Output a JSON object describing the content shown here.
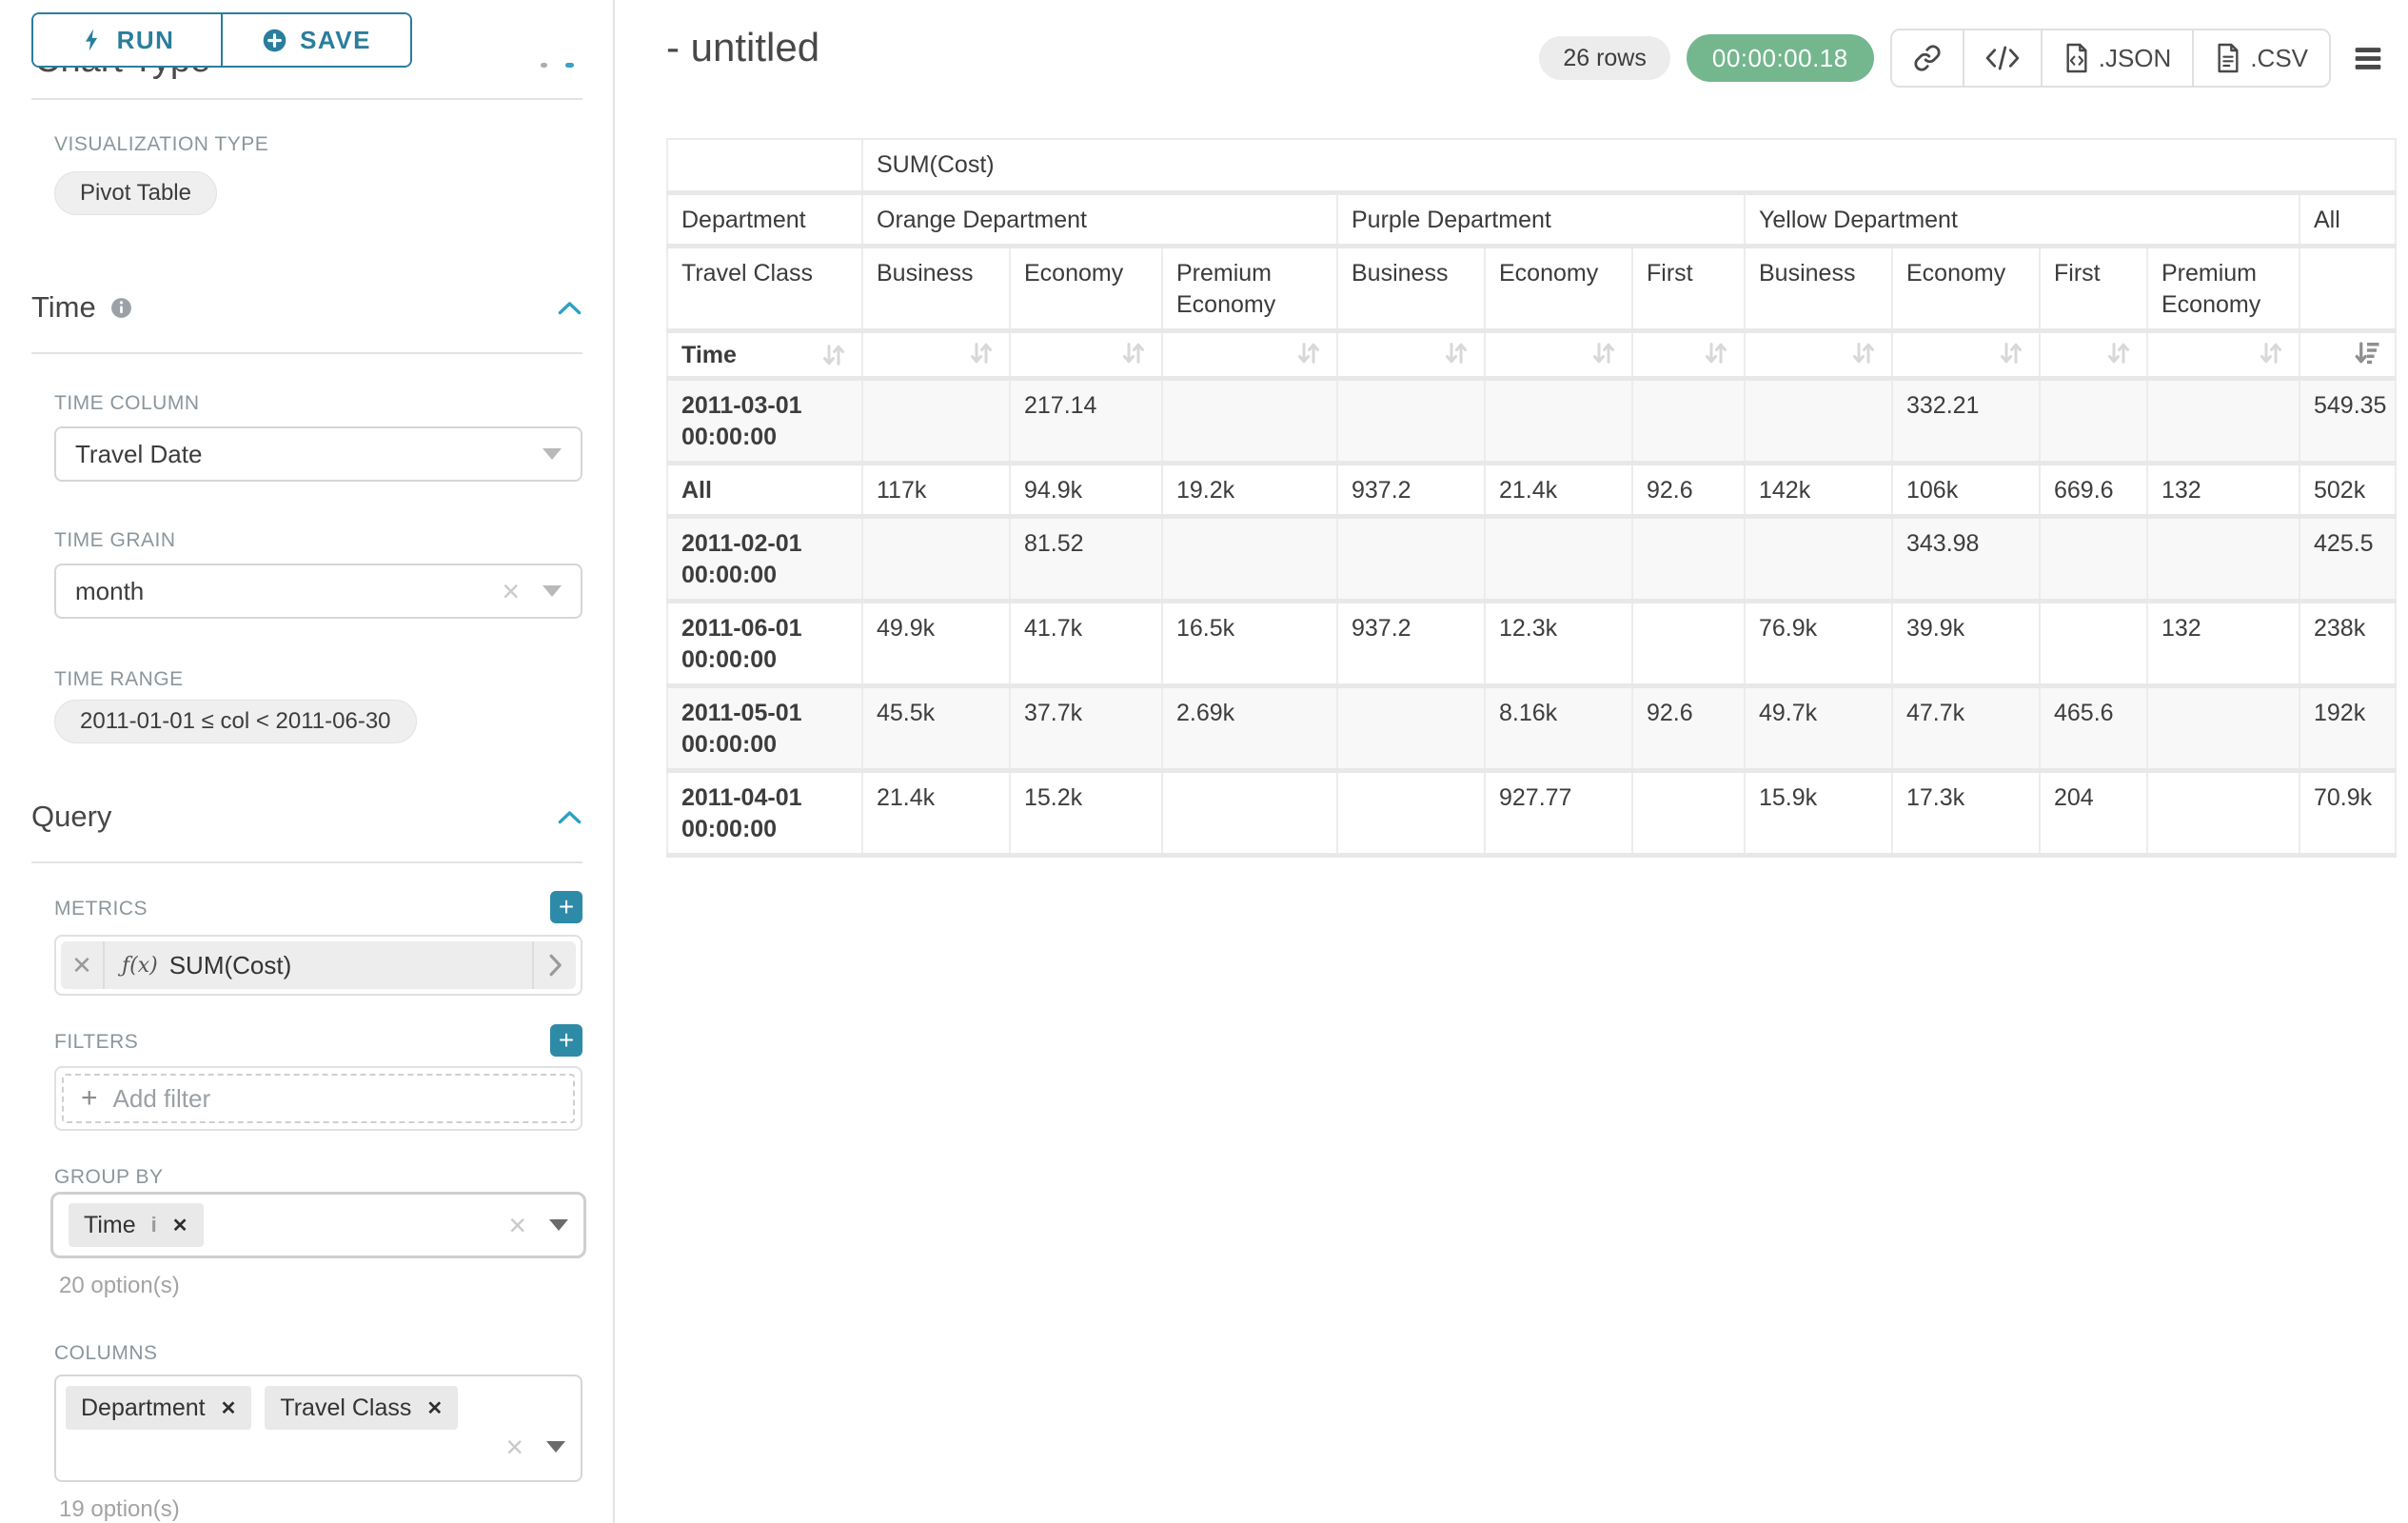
{
  "sidebar": {
    "scrolled_section_title": "Chart Type",
    "run_button": "RUN",
    "save_button": "SAVE",
    "visualization_type_label": "VISUALIZATION TYPE",
    "visualization_type_value": "Pivot Table",
    "time": {
      "section_title": "Time",
      "time_column_label": "TIME COLUMN",
      "time_column_value": "Travel Date",
      "time_grain_label": "TIME GRAIN",
      "time_grain_value": "month",
      "time_range_label": "TIME RANGE",
      "time_range_value": "2011-01-01 ≤ col < 2011-06-30"
    },
    "query": {
      "section_title": "Query",
      "metrics_label": "METRICS",
      "metric_fx": "ƒ(x)",
      "metric_value": "SUM(Cost)",
      "filters_label": "FILTERS",
      "add_filter_placeholder": "Add filter",
      "group_by_label": "GROUP BY",
      "group_by_tags": [
        "Time"
      ],
      "group_by_hint": "20 option(s)",
      "columns_label": "COLUMNS",
      "columns_tags": [
        "Department",
        "Travel Class"
      ],
      "columns_hint": "19 option(s)"
    }
  },
  "header": {
    "title": "- untitled",
    "row_count_badge": "26 rows",
    "query_timer": "00:00:00.18",
    "export_json_label": ".JSON",
    "export_csv_label": ".CSV",
    "icons": [
      "link-icon",
      "embed-code-icon",
      "file-json-icon",
      "file-csv-icon",
      "menu-icon"
    ],
    "accent_color": "#2a7e9d",
    "timer_color": "#74b78f"
  },
  "pivot_table": {
    "metric_header": "SUM(Cost)",
    "dept_row_label": "Department",
    "class_row_label": "Travel Class",
    "time_row_label": "Time",
    "column_groups": [
      {
        "label": "Orange Department",
        "classes": [
          "Business",
          "Economy",
          "Premium Economy"
        ]
      },
      {
        "label": "Purple Department",
        "classes": [
          "Business",
          "Economy",
          "First"
        ]
      },
      {
        "label": "Yellow Department",
        "classes": [
          "Business",
          "Economy",
          "First",
          "Premium Economy"
        ]
      },
      {
        "label": "All",
        "classes": [
          ""
        ]
      }
    ],
    "sort_state": {
      "sorted_column": "All",
      "direction": "desc"
    },
    "rows": [
      {
        "label": "2011-03-01 00:00:00",
        "values": [
          "",
          "217.14",
          "",
          "",
          "",
          "",
          "",
          "332.21",
          "",
          "",
          "549.35"
        ]
      },
      {
        "label": "All",
        "values": [
          "117k",
          "94.9k",
          "19.2k",
          "937.2",
          "21.4k",
          "92.6",
          "142k",
          "106k",
          "669.6",
          "132",
          "502k"
        ]
      },
      {
        "label": "2011-02-01 00:00:00",
        "values": [
          "",
          "81.52",
          "",
          "",
          "",
          "",
          "",
          "343.98",
          "",
          "",
          "425.5"
        ]
      },
      {
        "label": "2011-06-01 00:00:00",
        "values": [
          "49.9k",
          "41.7k",
          "16.5k",
          "937.2",
          "12.3k",
          "",
          "76.9k",
          "39.9k",
          "",
          "132",
          "238k"
        ]
      },
      {
        "label": "2011-05-01 00:00:00",
        "values": [
          "45.5k",
          "37.7k",
          "2.69k",
          "",
          "8.16k",
          "92.6",
          "49.7k",
          "47.7k",
          "465.6",
          "",
          "192k"
        ]
      },
      {
        "label": "2011-04-01 00:00:00",
        "values": [
          "21.4k",
          "15.2k",
          "",
          "",
          "927.77",
          "",
          "15.9k",
          "17.3k",
          "204",
          "",
          "70.9k"
        ]
      }
    ]
  }
}
